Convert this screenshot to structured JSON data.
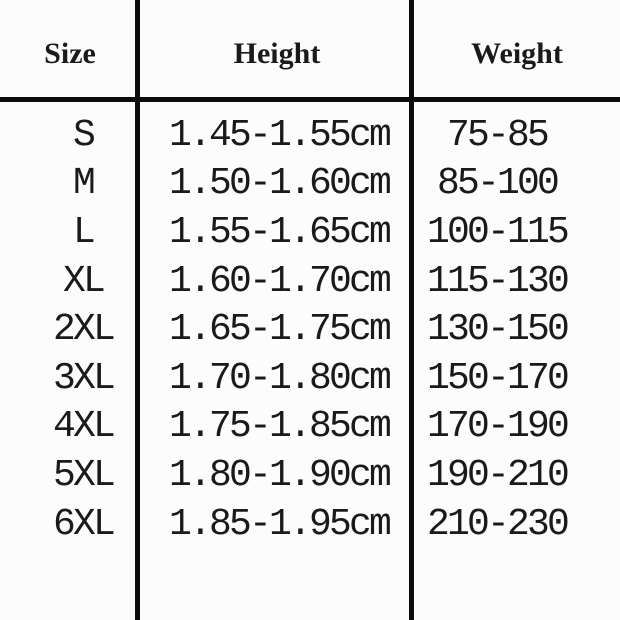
{
  "colors": {
    "background": "#fcfcfc",
    "text": "#1a1a1a",
    "line": "#0b0b0b"
  },
  "chart_data": {
    "type": "table",
    "columns": [
      "Size",
      "Height",
      "Weight"
    ],
    "rows": [
      [
        "S",
        "1.45-1.55cm",
        "75-85"
      ],
      [
        "M",
        "1.50-1.60cm",
        "85-100"
      ],
      [
        "L",
        "1.55-1.65cm",
        "100-115"
      ],
      [
        "XL",
        "1.60-1.70cm",
        "115-130"
      ],
      [
        "2XL",
        "1.65-1.75cm",
        "130-150"
      ],
      [
        "3XL",
        "1.70-1.80cm",
        "150-170"
      ],
      [
        "4XL",
        "1.75-1.85cm",
        "170-190"
      ],
      [
        "5XL",
        "1.80-1.90cm",
        "190-210"
      ],
      [
        "6XL",
        "1.85-1.95cm",
        "210-230"
      ]
    ]
  }
}
